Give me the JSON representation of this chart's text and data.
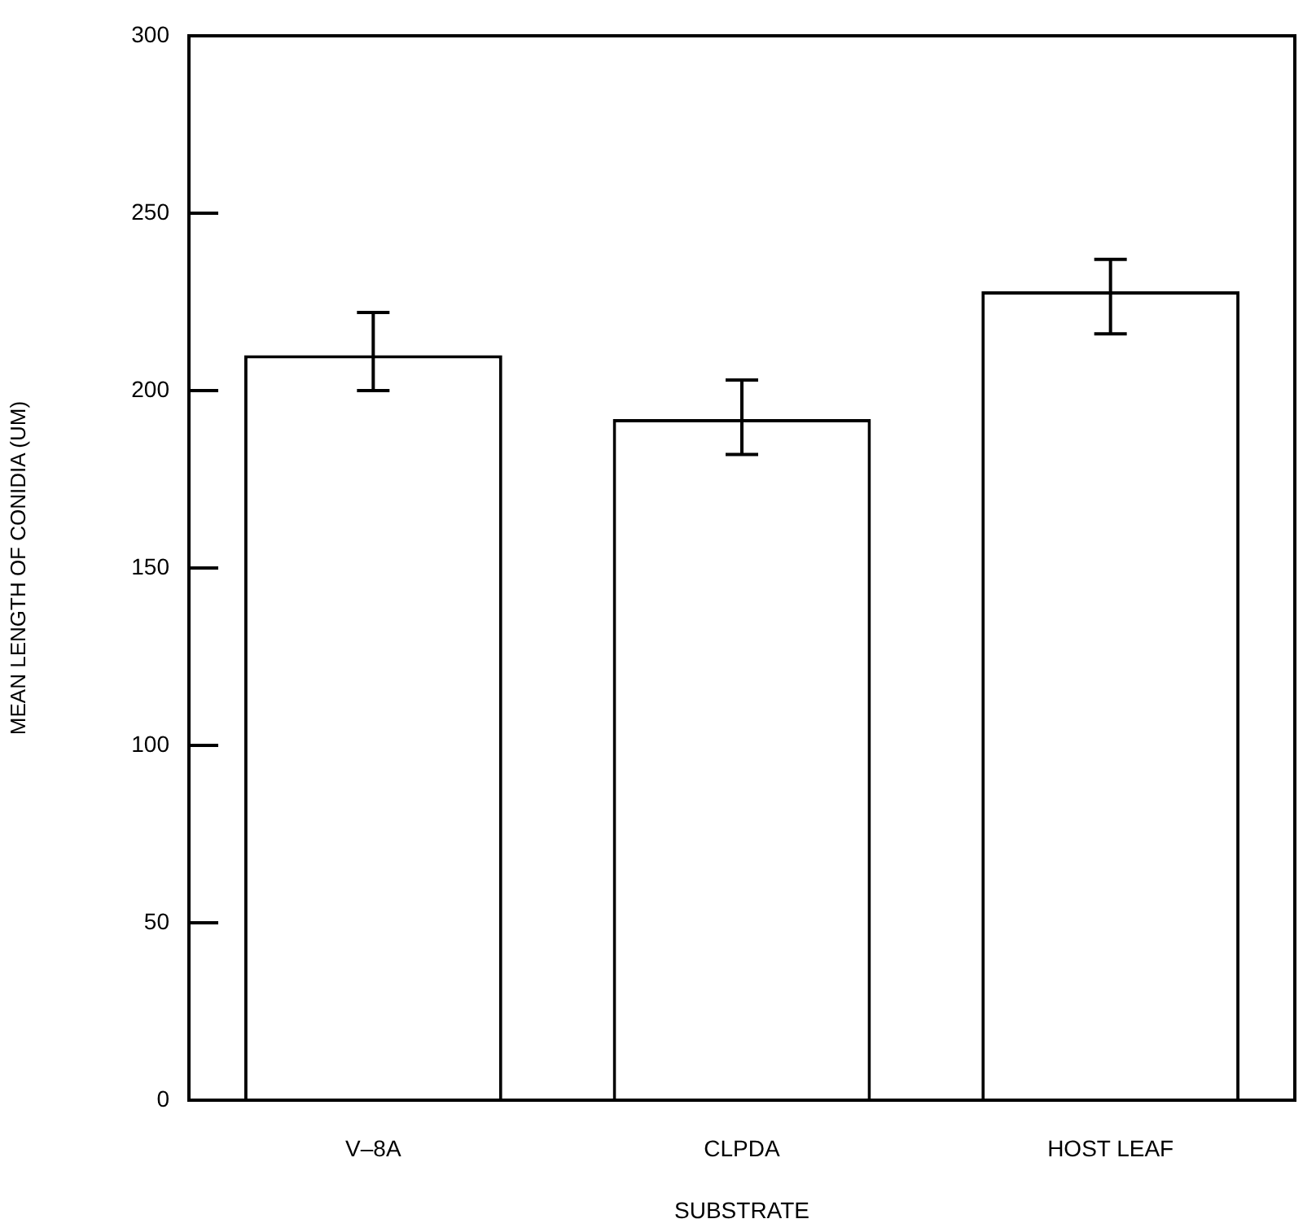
{
  "chart_data": {
    "type": "bar",
    "xlabel": "SUBSTRATE",
    "ylabel": "MEAN LENGTH OF CONIDIA (UM)",
    "categories": [
      "V–8A",
      "CLPDA",
      "HOST LEAF"
    ],
    "values": [
      210,
      192,
      228
    ],
    "color": "#ffffff",
    "errors": [
      [
        200,
        222
      ],
      [
        182,
        203
      ],
      [
        216,
        237
      ]
    ],
    "ylim": [
      0,
      300
    ],
    "yticks": [
      0,
      50,
      100,
      150,
      200,
      250,
      300
    ],
    "grid": false,
    "legend": false
  }
}
